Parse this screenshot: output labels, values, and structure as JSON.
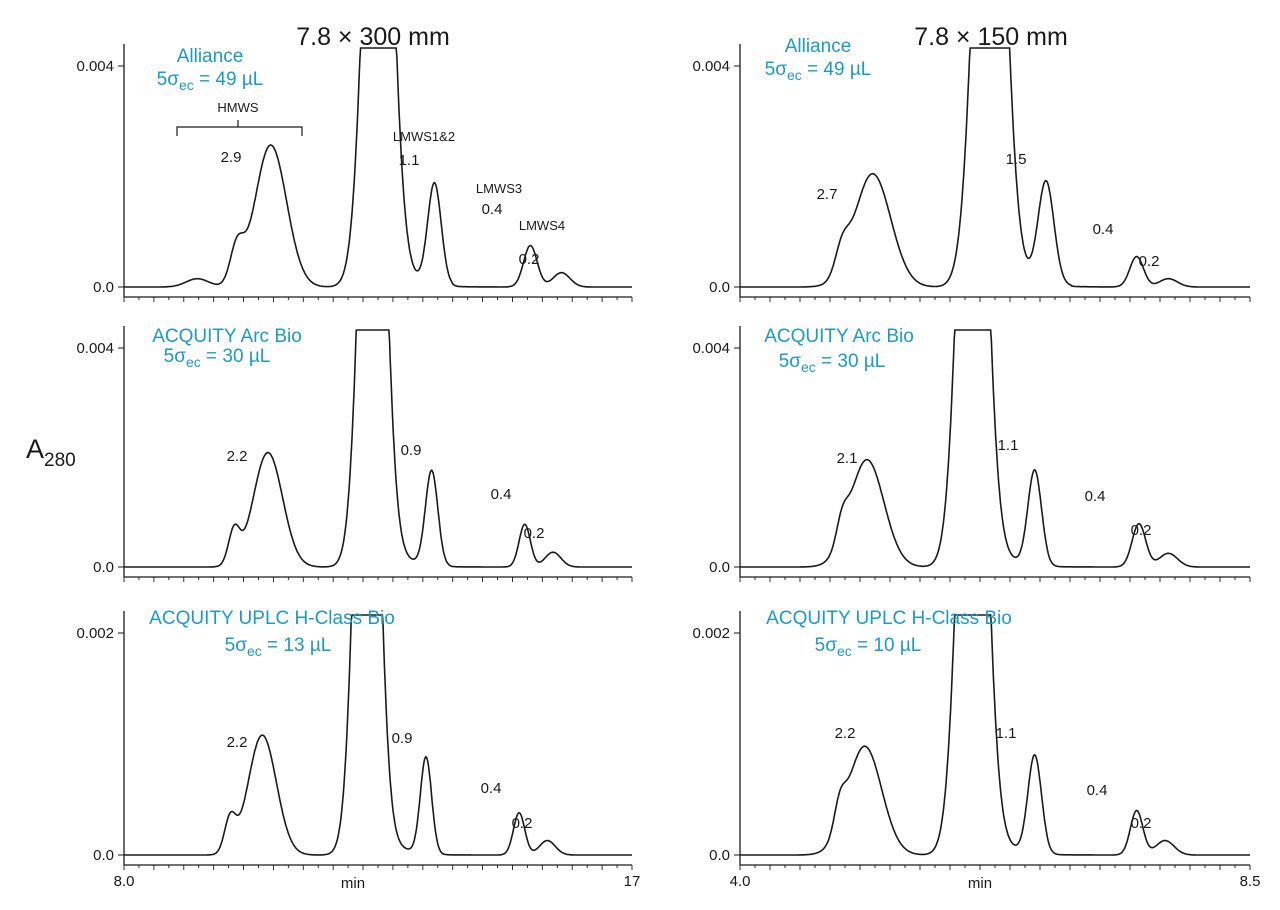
{
  "chart_data": {
    "type": "line",
    "ylabel": "A",
    "ylabel_subscript": "280",
    "accent_color": "#1a9bc7",
    "line_color": "#1a1a1a",
    "columns": [
      {
        "title": "7.8 × 300 mm",
        "xlabel": "min",
        "xlim": [
          8.0,
          17
        ],
        "x_tick_labels": [
          "8.0",
          "17"
        ],
        "panels": [
          {
            "instrument": "Alliance",
            "volume_prefix": "5σ",
            "volume_sub": "ec",
            "volume_value": " = 49 µL",
            "ylim": [
              0.0,
              0.004
            ],
            "y_tick_labels": [
              "0.0",
              "0.004"
            ],
            "peaks": [
              {
                "label": "2.9",
                "x": 10.6,
                "y": 0.00257,
                "w": 0.28
              },
              {
                "label": "1.1",
                "x": 13.5,
                "y": 0.00183,
                "w": 0.12
              },
              {
                "label": "0.4",
                "x": 15.2,
                "y": 0.00075,
                "w": 0.12
              },
              {
                "label": "0.2",
                "x": 15.75,
                "y": 0.00026,
                "w": 0.15
              }
            ],
            "shoulders": [
              {
                "x": 10.0,
                "y": 0.00065,
                "w": 0.12
              },
              {
                "x": 9.3,
                "y": 0.00015,
                "w": 0.2
              }
            ],
            "main_peak": {
              "x": 12.5,
              "w": 0.22
            },
            "annotations": {
              "bracket_label": "HMWS",
              "lmws12": "LMWS1&2",
              "lmws3": "LMWS3",
              "lmws4": "LMWS4"
            }
          },
          {
            "instrument": "ACQUITY Arc Bio",
            "volume_prefix": "5σ",
            "volume_sub": "ec",
            "volume_value": " = 30 µL",
            "ylim": [
              0.0,
              0.004
            ],
            "y_tick_labels": [
              "0.0",
              "0.004"
            ],
            "peaks": [
              {
                "label": "2.2",
                "x": 10.55,
                "y": 0.00209,
                "w": 0.26
              },
              {
                "label": "0.9",
                "x": 13.45,
                "y": 0.00173,
                "w": 0.11
              },
              {
                "label": "0.4",
                "x": 15.1,
                "y": 0.00078,
                "w": 0.1
              },
              {
                "label": "0.2",
                "x": 15.6,
                "y": 0.00027,
                "w": 0.14
              }
            ],
            "shoulders": [
              {
                "x": 9.95,
                "y": 0.00062,
                "w": 0.1
              }
            ],
            "main_peak": {
              "x": 12.4,
              "w": 0.2
            }
          },
          {
            "instrument": "ACQUITY UPLC H-Class Bio",
            "volume_prefix": "5σ",
            "volume_sub": "ec",
            "volume_value": " = 13 µL",
            "ylim": [
              0.0,
              0.002
            ],
            "y_tick_labels": [
              "0.0",
              "0.002"
            ],
            "peaks": [
              {
                "label": "2.2",
                "x": 10.45,
                "y": 0.00108,
                "w": 0.25
              },
              {
                "label": "0.9",
                "x": 13.35,
                "y": 0.00087,
                "w": 0.1
              },
              {
                "label": "0.4",
                "x": 15.0,
                "y": 0.00038,
                "w": 0.1
              },
              {
                "label": "0.2",
                "x": 15.5,
                "y": 0.00013,
                "w": 0.14
              }
            ],
            "shoulders": [
              {
                "x": 9.88,
                "y": 0.0003,
                "w": 0.1
              }
            ],
            "main_peak": {
              "x": 12.3,
              "w": 0.19
            }
          }
        ]
      },
      {
        "title": "7.8 × 150 mm",
        "xlabel": "min",
        "xlim": [
          4.0,
          8.5
        ],
        "x_tick_labels": [
          "4.0",
          "8.5"
        ],
        "panels": [
          {
            "instrument": "Alliance",
            "volume_prefix": "5σ",
            "volume_sub": "ec",
            "volume_value": " = 49 µL",
            "ylim": [
              0.0,
              0.004
            ],
            "y_tick_labels": [
              "0.0",
              "0.004"
            ],
            "peaks": [
              {
                "label": "2.7",
                "x": 5.17,
                "y": 0.00205,
                "w": 0.16
              },
              {
                "label": "1.5",
                "x": 6.7,
                "y": 0.00185,
                "w": 0.07
              },
              {
                "label": "0.4",
                "x": 7.5,
                "y": 0.00055,
                "w": 0.06
              },
              {
                "label": "0.2",
                "x": 7.78,
                "y": 0.00015,
                "w": 0.08
              }
            ],
            "shoulders": [
              {
                "x": 4.9,
                "y": 0.00045,
                "w": 0.06
              }
            ],
            "main_peak": {
              "x": 6.2,
              "w": 0.12
            }
          },
          {
            "instrument": "ACQUITY Arc Bio",
            "volume_prefix": "5σ",
            "volume_sub": "ec",
            "volume_value": " = 30 µL",
            "ylim": [
              0.0,
              0.004
            ],
            "y_tick_labels": [
              "0.0",
              "0.004"
            ],
            "peaks": [
              {
                "label": "2.1",
                "x": 5.12,
                "y": 0.00196,
                "w": 0.15
              },
              {
                "label": "1.1",
                "x": 6.6,
                "y": 0.00173,
                "w": 0.06
              },
              {
                "label": "0.4",
                "x": 7.52,
                "y": 0.00079,
                "w": 0.06
              },
              {
                "label": "0.2",
                "x": 7.78,
                "y": 0.00025,
                "w": 0.08
              }
            ],
            "shoulders": [
              {
                "x": 4.9,
                "y": 0.00042,
                "w": 0.05
              }
            ],
            "main_peak": {
              "x": 6.05,
              "w": 0.11
            }
          },
          {
            "instrument": "ACQUITY UPLC H-Class Bio",
            "volume_prefix": "5σ",
            "volume_sub": "ec",
            "volume_value": " = 10 µL",
            "ylim": [
              0.0,
              0.002
            ],
            "y_tick_labels": [
              "0.0",
              "0.002"
            ],
            "peaks": [
              {
                "label": "2.2",
                "x": 5.1,
                "y": 0.00098,
                "w": 0.15
              },
              {
                "label": "1.1",
                "x": 6.6,
                "y": 0.00088,
                "w": 0.06
              },
              {
                "label": "0.4",
                "x": 7.5,
                "y": 0.0004,
                "w": 0.055
              },
              {
                "label": "0.2",
                "x": 7.75,
                "y": 0.00013,
                "w": 0.08
              }
            ],
            "shoulders": [
              {
                "x": 4.88,
                "y": 0.00024,
                "w": 0.05
              }
            ],
            "main_peak": {
              "x": 6.05,
              "w": 0.11
            }
          }
        ]
      }
    ]
  }
}
